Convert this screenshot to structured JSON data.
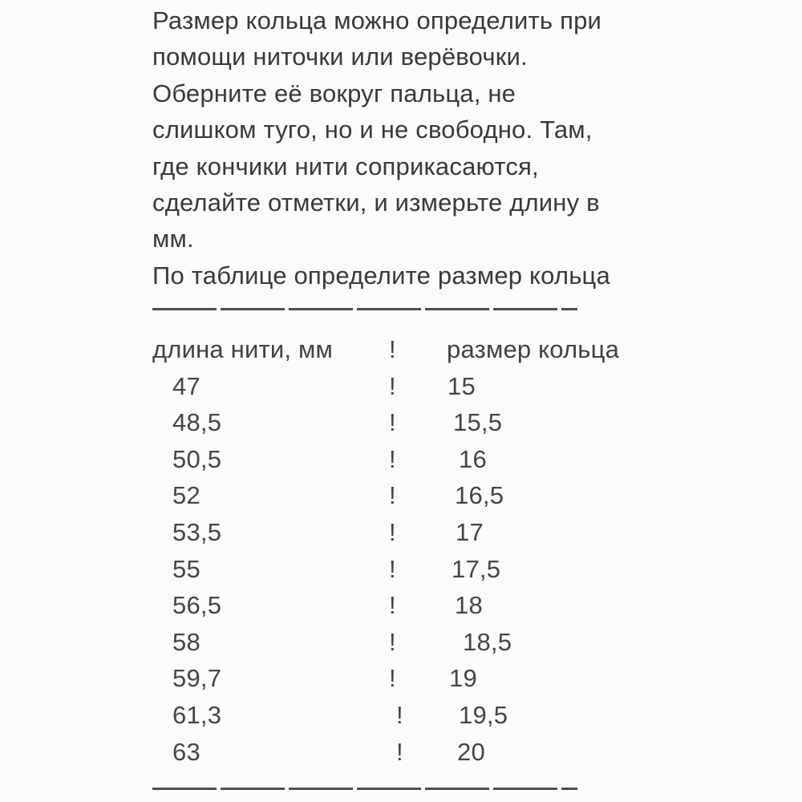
{
  "colors": {
    "background": "#fbfbfb",
    "text": "#39393c",
    "table_text": "#454548",
    "divider": "#4d4d4f"
  },
  "intro": {
    "lines": [
      "Размер кольца можно определить при",
      "помощи ниточки или верёвочки.",
      "Оберните её вокруг пальца, не",
      "слишком туго, но и не свободно. Там,",
      "где кончики нити соприкасаются,",
      "сделайте отметки, и измерьте длину в",
      "мм.",
      "По таблице определите размер кольца"
    ]
  },
  "table": {
    "separator": "!",
    "header": {
      "length_label": "длина нити, мм",
      "size_label": "размер кольца"
    },
    "rows": [
      {
        "len": "47",
        "size": "15"
      },
      {
        "len": "48,5",
        "size": "15,5"
      },
      {
        "len": "50,5",
        "size": "16"
      },
      {
        "len": "52",
        "size": "16,5"
      },
      {
        "len": "53,5",
        "size": "17"
      },
      {
        "len": "55",
        "size": "17,5"
      },
      {
        "len": "56,5",
        "size": "18"
      },
      {
        "len": "58",
        "size": "18,5"
      },
      {
        "len": "59,7",
        "size": "19"
      },
      {
        "len": "61,3",
        "size": "19,5"
      },
      {
        "len": "63",
        "size": "20"
      }
    ]
  }
}
